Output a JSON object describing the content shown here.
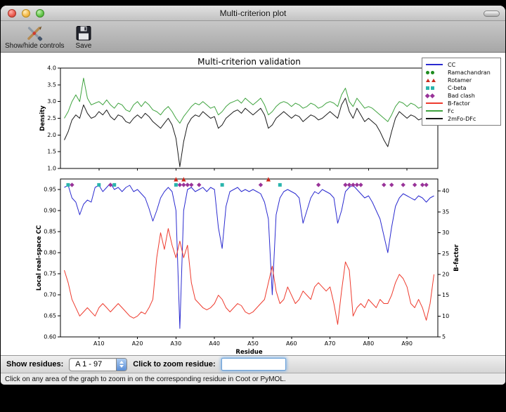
{
  "window": {
    "title": "Multi-criterion plot",
    "toolbar": {
      "items": [
        {
          "label": "Show/hide controls"
        },
        {
          "label": "Save"
        }
      ]
    }
  },
  "controls": {
    "show_residues_label": "Show residues:",
    "chain_selector_value": "A  1 - 97",
    "zoom_label": "Click to zoom residue:",
    "zoom_input_value": "",
    "status_text": "Click on any area of the graph to zoom in on the corresponding residue in Coot or PyMOL."
  },
  "chart_data": {
    "type": "line",
    "title": "Multi-criterion validation",
    "xlabel": "Residue",
    "n_residues": 97,
    "x_ticks": [
      10,
      20,
      30,
      40,
      50,
      60,
      70,
      80,
      90
    ],
    "x_tick_labels": [
      "A10",
      "A20",
      "A30",
      "A40",
      "A50",
      "A60",
      "A70",
      "A80",
      "A90"
    ],
    "top_plot": {
      "ylabel": "Density",
      "ylim": [
        1.0,
        4.0
      ],
      "yticks": [
        1.0,
        1.5,
        2.0,
        2.5,
        3.0,
        3.5,
        4.0
      ],
      "series": [
        {
          "name": "Fc",
          "color": "#3fa33f",
          "values": [
            2.5,
            2.7,
            3.0,
            3.2,
            3.0,
            3.7,
            3.1,
            2.9,
            2.95,
            3.0,
            2.9,
            3.05,
            2.9,
            2.8,
            2.95,
            2.9,
            2.75,
            2.7,
            2.9,
            3.0,
            2.85,
            3.0,
            2.9,
            2.75,
            2.7,
            2.6,
            2.75,
            2.85,
            2.7,
            2.5,
            2.35,
            2.55,
            2.7,
            2.85,
            2.95,
            2.9,
            3.0,
            2.9,
            2.8,
            2.85,
            2.6,
            2.7,
            2.85,
            2.95,
            3.0,
            3.05,
            2.95,
            3.1,
            3.0,
            2.9,
            3.0,
            3.1,
            2.9,
            2.6,
            2.7,
            2.85,
            2.95,
            3.0,
            2.95,
            2.85,
            2.95,
            2.9,
            2.8,
            2.85,
            2.95,
            2.9,
            2.8,
            2.85,
            2.95,
            3.0,
            2.95,
            2.85,
            3.2,
            3.4,
            3.0,
            2.85,
            3.1,
            2.95,
            2.8,
            2.85,
            2.8,
            2.7,
            2.6,
            2.5,
            2.4,
            2.6,
            2.85,
            3.0,
            2.95,
            2.85,
            2.95,
            2.9,
            2.8,
            2.85,
            3.1,
            3.5,
            3.2
          ]
        },
        {
          "name": "2mFo-DFc",
          "color": "#1a1a1a",
          "values": [
            1.85,
            2.1,
            2.45,
            2.6,
            2.5,
            2.9,
            2.65,
            2.5,
            2.55,
            2.7,
            2.6,
            2.75,
            2.55,
            2.45,
            2.6,
            2.55,
            2.4,
            2.35,
            2.5,
            2.6,
            2.5,
            2.65,
            2.55,
            2.4,
            2.3,
            2.2,
            2.35,
            2.5,
            2.3,
            1.9,
            1.05,
            1.8,
            2.3,
            2.5,
            2.6,
            2.55,
            2.7,
            2.6,
            2.5,
            2.55,
            2.2,
            2.3,
            2.5,
            2.6,
            2.7,
            2.75,
            2.65,
            2.8,
            2.7,
            2.6,
            2.7,
            2.8,
            2.6,
            2.2,
            2.3,
            2.5,
            2.6,
            2.7,
            2.6,
            2.5,
            2.6,
            2.55,
            2.4,
            2.5,
            2.6,
            2.55,
            2.45,
            2.5,
            2.6,
            2.7,
            2.6,
            2.5,
            2.9,
            3.1,
            2.7,
            2.5,
            2.8,
            2.6,
            2.4,
            2.5,
            2.4,
            2.3,
            2.1,
            1.85,
            1.65,
            2.1,
            2.5,
            2.7,
            2.6,
            2.5,
            2.6,
            2.55,
            2.45,
            2.5,
            2.7,
            2.9,
            2.85
          ]
        }
      ]
    },
    "bottom_plot": {
      "ylabel_left": "Local real-space CC",
      "ylim_left": [
        0.6,
        0.975
      ],
      "yticks_left": [
        0.6,
        0.65,
        0.7,
        0.75,
        0.8,
        0.85,
        0.9,
        0.95
      ],
      "ylabel_right": "B-factor",
      "ylim_right": [
        5,
        42.9
      ],
      "yticks_right": [
        5,
        10,
        15,
        20,
        25,
        30,
        35,
        40
      ],
      "series": [
        {
          "name": "CC",
          "axis": "left",
          "color": "#2b2bd0",
          "values": [
            0.955,
            0.96,
            0.93,
            0.92,
            0.89,
            0.915,
            0.925,
            0.92,
            0.955,
            0.96,
            0.945,
            0.955,
            0.965,
            0.95,
            0.955,
            0.945,
            0.955,
            0.96,
            0.945,
            0.95,
            0.94,
            0.93,
            0.905,
            0.875,
            0.9,
            0.93,
            0.945,
            0.955,
            0.945,
            0.9,
            0.62,
            0.9,
            0.95,
            0.955,
            0.945,
            0.95,
            0.955,
            0.945,
            0.955,
            0.95,
            0.86,
            0.81,
            0.91,
            0.945,
            0.95,
            0.955,
            0.945,
            0.95,
            0.945,
            0.95,
            0.945,
            0.94,
            0.92,
            0.88,
            0.7,
            0.89,
            0.93,
            0.945,
            0.95,
            0.945,
            0.94,
            0.93,
            0.87,
            0.9,
            0.93,
            0.945,
            0.94,
            0.95,
            0.945,
            0.94,
            0.93,
            0.87,
            0.9,
            0.945,
            0.955,
            0.96,
            0.95,
            0.94,
            0.93,
            0.935,
            0.92,
            0.9,
            0.88,
            0.84,
            0.8,
            0.86,
            0.91,
            0.93,
            0.94,
            0.935,
            0.93,
            0.925,
            0.935,
            0.93,
            0.92,
            0.93,
            0.935
          ]
        },
        {
          "name": "B-factor",
          "axis": "right",
          "color": "#ee3b2e",
          "values": [
            21,
            18,
            14,
            12,
            10,
            11,
            12,
            11,
            10,
            12,
            13,
            12,
            11,
            12,
            13,
            12,
            11,
            10,
            9.5,
            10,
            11,
            10.5,
            12,
            14,
            24,
            30,
            26,
            31,
            27,
            24,
            28,
            24,
            27,
            18,
            14,
            13,
            12,
            11.5,
            12,
            13,
            15,
            14,
            12,
            11,
            12,
            13,
            12.5,
            11,
            10.5,
            11,
            12,
            13,
            14,
            18,
            22,
            16,
            13,
            14,
            17,
            15,
            13,
            14,
            16,
            15,
            14,
            17,
            18,
            17,
            16,
            17,
            13,
            8,
            16,
            23,
            21,
            10,
            12,
            13,
            12,
            14,
            13,
            12,
            14,
            13,
            13,
            15,
            18,
            20,
            19,
            17,
            13,
            12,
            14,
            12,
            9,
            13,
            20
          ]
        }
      ],
      "markers": [
        {
          "name": "Ramachandran",
          "shape": "circle",
          "color": "#1f8c1f",
          "y": 0.961,
          "residues": []
        },
        {
          "name": "Rotamer",
          "shape": "triangle",
          "color": "#cc2a1e",
          "y": 0.9735,
          "residues": [
            30,
            32,
            54
          ]
        },
        {
          "name": "C-beta",
          "shape": "square",
          "color": "#2ab5ad",
          "y": 0.961,
          "residues": [
            2,
            10,
            14,
            30,
            42,
            57
          ]
        },
        {
          "name": "Bad clash",
          "shape": "diamond",
          "color": "#993399",
          "y": 0.961,
          "residues": [
            3,
            13,
            31,
            32,
            33,
            34,
            36,
            52,
            67,
            74,
            75,
            76,
            77,
            78,
            84,
            86,
            89,
            92,
            94,
            95
          ]
        }
      ]
    },
    "legend": [
      {
        "label": "CC",
        "type": "line",
        "color": "#2b2bd0"
      },
      {
        "label": "Ramachandran",
        "type": "marker",
        "shape": "circle",
        "color": "#1f8c1f"
      },
      {
        "label": "Rotamer",
        "type": "marker",
        "shape": "triangle",
        "color": "#cc2a1e"
      },
      {
        "label": "C-beta",
        "type": "marker",
        "shape": "square",
        "color": "#2ab5ad"
      },
      {
        "label": "Bad clash",
        "type": "marker",
        "shape": "diamond",
        "color": "#993399"
      },
      {
        "label": "B-factor",
        "type": "line",
        "color": "#ee3b2e"
      },
      {
        "label": "Fc",
        "type": "line",
        "color": "#3fa33f"
      },
      {
        "label": "2mFo-DFc",
        "type": "line",
        "color": "#1a1a1a"
      }
    ]
  }
}
